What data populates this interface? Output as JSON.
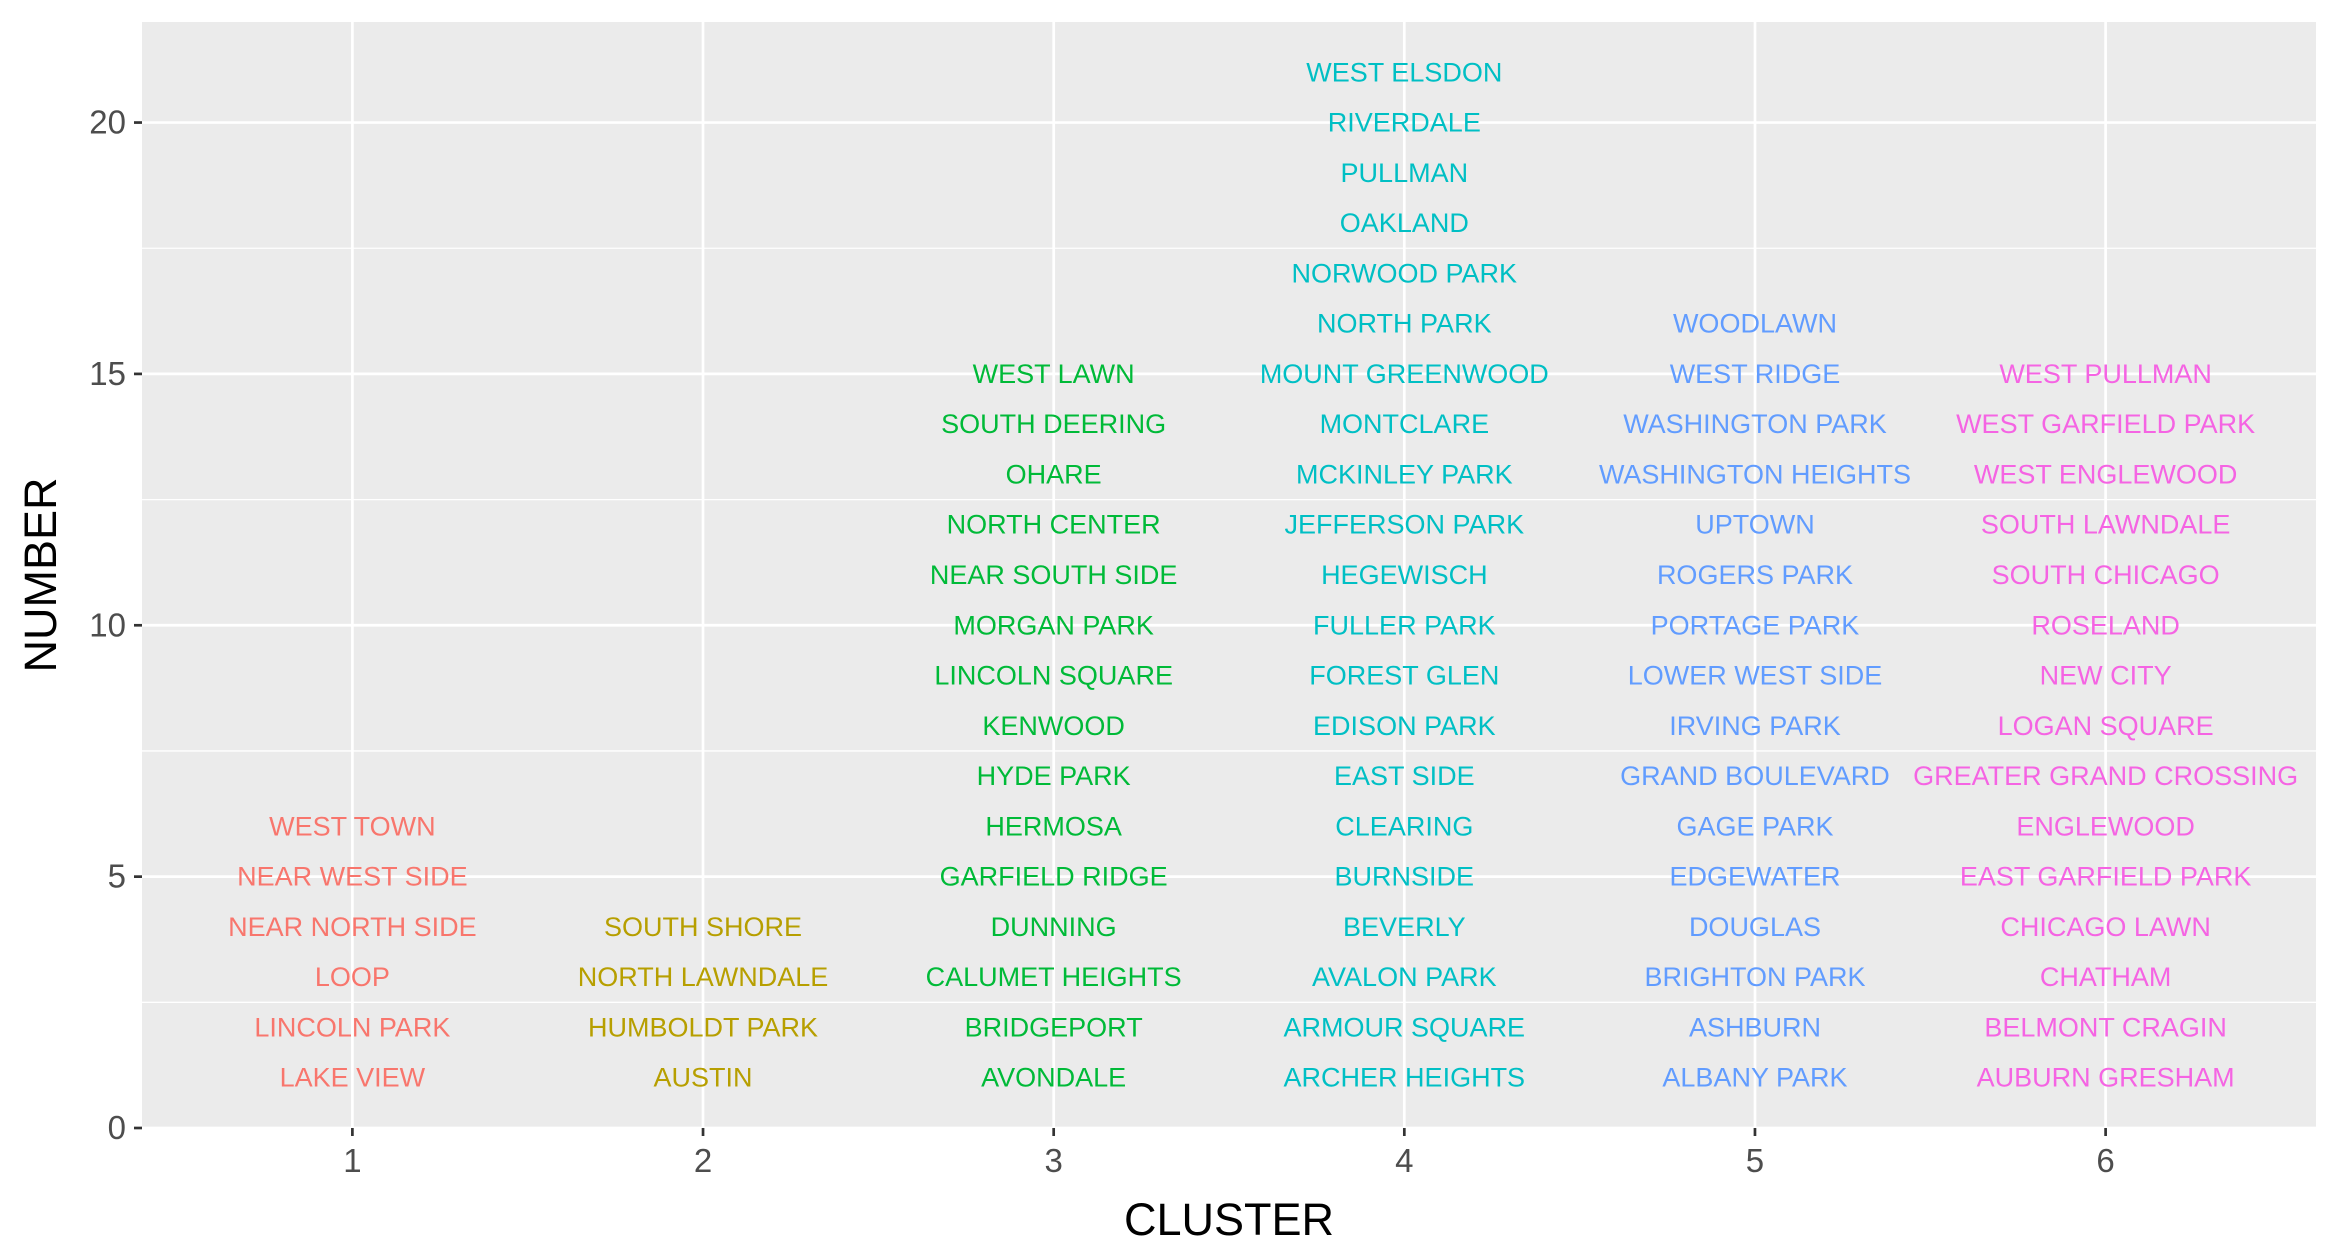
{
  "chart_data": {
    "type": "scatter",
    "title": "",
    "xlabel": "CLUSTER",
    "ylabel": "NUMBER",
    "xlim": [
      0.4,
      6.6
    ],
    "ylim": [
      0,
      22
    ],
    "x_ticks": [
      "1",
      "2",
      "3",
      "4",
      "5",
      "6"
    ],
    "y_ticks": [
      "0",
      "5",
      "10",
      "15",
      "20"
    ],
    "grid": true,
    "legend": "none",
    "panel_background": "#ebebeb",
    "cluster_colors": {
      "1": "#F8766D",
      "2": "#B79F00",
      "3": "#00BA38",
      "4": "#00BFC4",
      "5": "#619CFF",
      "6": "#F564E3"
    },
    "clusters": [
      {
        "cluster": 1,
        "labels": [
          "LAKE VIEW",
          "LINCOLN PARK",
          "LOOP",
          "NEAR NORTH SIDE",
          "NEAR WEST SIDE",
          "WEST TOWN"
        ]
      },
      {
        "cluster": 2,
        "labels": [
          "AUSTIN",
          "HUMBOLDT PARK",
          "NORTH LAWNDALE",
          "SOUTH SHORE"
        ]
      },
      {
        "cluster": 3,
        "labels": [
          "AVONDALE",
          "BRIDGEPORT",
          "CALUMET HEIGHTS",
          "DUNNING",
          "GARFIELD RIDGE",
          "HERMOSA",
          "HYDE PARK",
          "KENWOOD",
          "LINCOLN SQUARE",
          "MORGAN PARK",
          "NEAR SOUTH SIDE",
          "NORTH CENTER",
          "OHARE",
          "SOUTH DEERING",
          "WEST LAWN"
        ]
      },
      {
        "cluster": 4,
        "labels": [
          "ARCHER HEIGHTS",
          "ARMOUR SQUARE",
          "AVALON PARK",
          "BEVERLY",
          "BURNSIDE",
          "CLEARING",
          "EAST SIDE",
          "EDISON PARK",
          "FOREST GLEN",
          "FULLER PARK",
          "HEGEWISCH",
          "JEFFERSON PARK",
          "MCKINLEY PARK",
          "MONTCLARE",
          "MOUNT GREENWOOD",
          "NORTH PARK",
          "NORWOOD PARK",
          "OAKLAND",
          "PULLMAN",
          "RIVERDALE",
          "WEST ELSDON"
        ]
      },
      {
        "cluster": 5,
        "labels": [
          "ALBANY PARK",
          "ASHBURN",
          "BRIGHTON PARK",
          "DOUGLAS",
          "EDGEWATER",
          "GAGE PARK",
          "GRAND BOULEVARD",
          "IRVING PARK",
          "LOWER WEST SIDE",
          "PORTAGE PARK",
          "ROGERS PARK",
          "UPTOWN",
          "WASHINGTON HEIGHTS",
          "WASHINGTON PARK",
          "WEST RIDGE",
          "WOODLAWN"
        ]
      },
      {
        "cluster": 6,
        "labels": [
          "AUBURN GRESHAM",
          "BELMONT CRAGIN",
          "CHATHAM",
          "CHICAGO LAWN",
          "EAST GARFIELD PARK",
          "ENGLEWOOD",
          "GREATER GRAND CROSSING",
          "LOGAN SQUARE",
          "NEW CITY",
          "ROSELAND",
          "SOUTH CHICAGO",
          "SOUTH LAWNDALE",
          "WEST ENGLEWOOD",
          "WEST GARFIELD PARK",
          "WEST PULLMAN"
        ]
      }
    ]
  }
}
